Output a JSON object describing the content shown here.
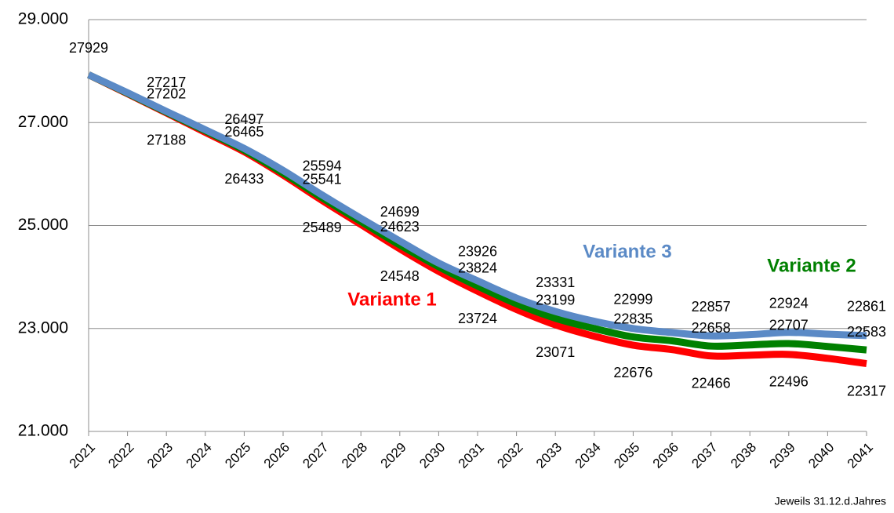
{
  "chart_data": {
    "type": "line",
    "categories": [
      "2021",
      "2022",
      "2023",
      "2024",
      "2025",
      "2026",
      "2027",
      "2028",
      "2029",
      "2030",
      "2031",
      "2032",
      "2033",
      "2034",
      "2035",
      "2036",
      "2037",
      "2038",
      "2039",
      "2040",
      "2041"
    ],
    "series": [
      {
        "name": "Variante 1",
        "color": "#ff0000",
        "values": [
          27929,
          27560,
          27188,
          26810,
          26433,
          25980,
          25489,
          25020,
          24548,
          24110,
          23724,
          23370,
          23071,
          22850,
          22676,
          22590,
          22466,
          22480,
          22496,
          22420,
          22317
        ],
        "value_labels": [
          null,
          null,
          "27188",
          null,
          "26433",
          null,
          "25489",
          null,
          "24548",
          null,
          "23724",
          null,
          "23071",
          null,
          "22676",
          null,
          "22466",
          null,
          "22496",
          null,
          "22317"
        ]
      },
      {
        "name": "Variante 2",
        "color": "#008000",
        "values": [
          27929,
          27570,
          27202,
          26840,
          26465,
          26020,
          25541,
          25080,
          24623,
          24200,
          23824,
          23480,
          23199,
          23000,
          22835,
          22760,
          22658,
          22680,
          22707,
          22650,
          22583
        ],
        "value_labels": [
          null,
          null,
          "27202",
          null,
          "26465",
          null,
          "25541",
          null,
          "24623",
          null,
          "23824",
          null,
          "23199",
          null,
          "22835",
          null,
          "22658",
          null,
          "22707",
          null,
          "22583"
        ]
      },
      {
        "name": "Variante 3",
        "color": "#5b8ac6",
        "values": [
          27929,
          27580,
          27217,
          26860,
          26497,
          26070,
          25594,
          25140,
          24699,
          24270,
          23926,
          23590,
          23331,
          23140,
          22999,
          22920,
          22857,
          22880,
          22924,
          22890,
          22861
        ],
        "value_labels": [
          "27929",
          null,
          "27217",
          null,
          "26497",
          null,
          "25594",
          null,
          "24699",
          null,
          "23926",
          null,
          "23331",
          null,
          "22999",
          null,
          "22857",
          null,
          "22924",
          null,
          "22861"
        ]
      }
    ],
    "ylim": [
      21000,
      29000
    ],
    "yticks": [
      {
        "value": 21000,
        "label": "21.000"
      },
      {
        "value": 23000,
        "label": "23.000"
      },
      {
        "value": 25000,
        "label": "25.000"
      },
      {
        "value": 27000,
        "label": "27.000"
      },
      {
        "value": 29000,
        "label": "29.000"
      }
    ],
    "grid": true,
    "footnote": "Jeweils 31.12.d.Jahres"
  }
}
